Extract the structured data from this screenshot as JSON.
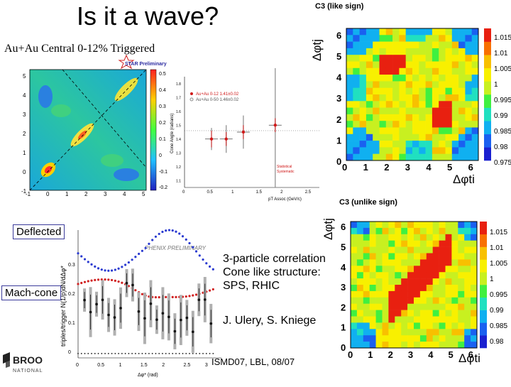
{
  "slide": {
    "title": "Is it a wave?",
    "subtitle": "Au+Au Central 0-12% Triggered",
    "labels": {
      "deflected": "Deflected",
      "mach_cone": "Mach-cone"
    },
    "body_lines": [
      "3-particle correlation",
      "Cone like structure:",
      "SPS, RHIC"
    ],
    "authors": "J. Ulery, S. Kniege",
    "footer": "ISMD07, LBL, 08/07",
    "logo_text": [
      "BROO",
      "NATIONAL"
    ]
  },
  "star_panel": {
    "badge": "STAR Preliminary",
    "yticks": [
      "5",
      "4",
      "3",
      "2",
      "1",
      "0",
      "-1"
    ],
    "xticks": [
      "-1",
      "0",
      "1",
      "2",
      "3",
      "4",
      "5"
    ],
    "zticks": [
      "0.5",
      "0.4",
      "0.3",
      "0.2",
      "0.1",
      "0",
      "-0.1",
      "-0.2"
    ]
  },
  "cone_angle_plot": {
    "legend": [
      "Au+Au 0-12 1.41±0.02",
      "Au+Au 0-50 1.46±0.02"
    ],
    "ylabel": "Cone Angle (radians)",
    "xlabel": "pT Assoc (GeV/c)",
    "xticks": [
      "0",
      "0.5",
      "1",
      "1.5",
      "2",
      "2.5"
    ],
    "yticks": [
      "1.8",
      "1.7",
      "1.6",
      "1.5",
      "1.4",
      "1.3",
      "1.2",
      "1.1"
    ],
    "err_labels": [
      "Statistical",
      "Systematic"
    ],
    "points": [
      {
        "x": 0.55,
        "y": 1.4,
        "err": 0.06,
        "syst": 0.08
      },
      {
        "x": 0.85,
        "y": 1.4,
        "err": 0.05,
        "syst": 0.1
      },
      {
        "x": 1.2,
        "y": 1.45,
        "err": 0.05,
        "syst": 0.12
      },
      {
        "x": 1.85,
        "y": 1.5,
        "err": 0.05,
        "syst": 0.45
      }
    ],
    "colors": {
      "series1": "#d01818",
      "series2": "#8a8a8a"
    }
  },
  "phenix_panel": {
    "badge": "PHENIX PRELIMINARY",
    "ylabel": "triples/trigger N(1/p)dN/dΔφ*",
    "xlabel": "Δφ* (rad)",
    "xticks": [
      "0",
      "0.5",
      "1",
      "1.5",
      "2",
      "2.5",
      "3"
    ],
    "yticks": [
      "0.3",
      "0.2",
      "0.1",
      "0"
    ],
    "colors": {
      "blue": "#2a3ad0",
      "red": "#d02020",
      "black": "#111111",
      "band": "#b0b0b0"
    }
  },
  "c3_like": {
    "title": "C3 (like sign)",
    "ylabel": "Δφtj",
    "xlabel": "Δφti",
    "ticks": [
      "0",
      "1",
      "2",
      "3",
      "4",
      "5",
      "6"
    ],
    "scale": [
      "1.015",
      "1.01",
      "1.005",
      "1",
      "0.995",
      "0.99",
      "0.985",
      "0.98",
      "0.975"
    ]
  },
  "c3_unlike": {
    "title": "C3 (unlike sign)",
    "ylabel": "Δφtj",
    "xlabel": "Δφti",
    "ticks": [
      "0",
      "1",
      "2",
      "3",
      "4",
      "5",
      "6"
    ],
    "scale": [
      "1.015",
      "1.01",
      "1.005",
      "1",
      "0.995",
      "0.99",
      "0.985",
      "0.98"
    ]
  }
}
